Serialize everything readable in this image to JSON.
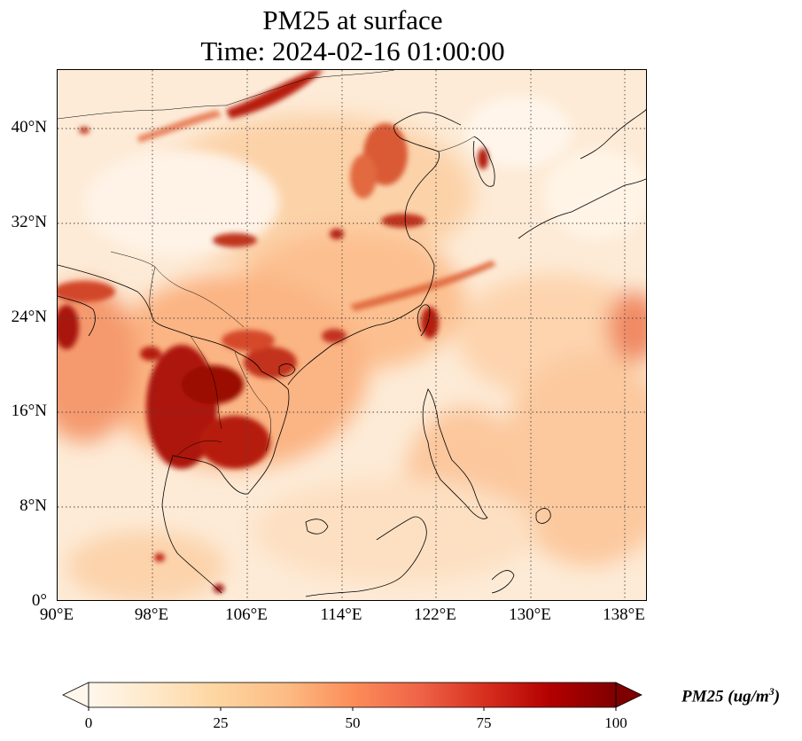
{
  "title": {
    "line1": "PM25 at surface",
    "line2": "Time: 2024-02-16 01:00:00"
  },
  "map": {
    "projection": "PlateCarree",
    "lon_range": [
      90,
      140
    ],
    "lat_range": [
      0,
      45
    ],
    "gridlines": "dotted",
    "colormap": "OrRd",
    "lat_ticks": [
      "0°",
      "8°N",
      "16°N",
      "24°N",
      "32°N",
      "40°N"
    ],
    "lon_ticks": [
      "90°E",
      "98°E",
      "106°E",
      "114°E",
      "122°E",
      "130°E",
      "138°E"
    ]
  },
  "colorbar": {
    "label": "PM25 (ug/m",
    "label_superscript": "3",
    "label_close": ")",
    "min": 0,
    "max": 100,
    "ticks": [
      "0",
      "25",
      "50",
      "75",
      "100"
    ],
    "extend": "both"
  }
}
